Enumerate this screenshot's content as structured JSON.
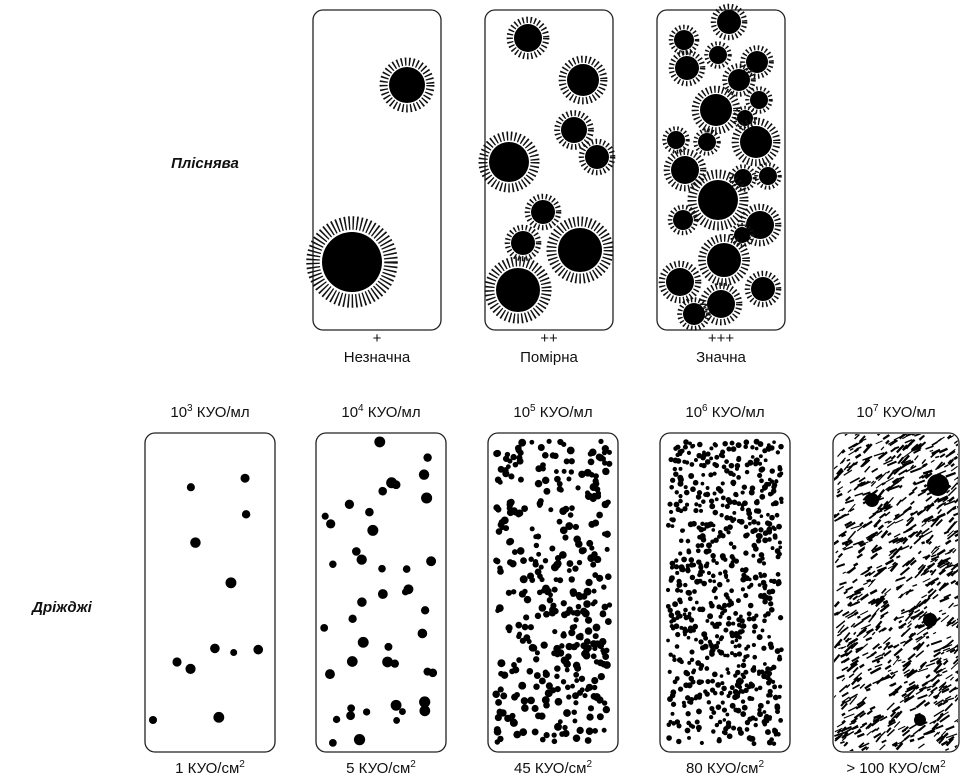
{
  "mold": {
    "label": "Пліснява",
    "panels": [
      {
        "symbol": "+",
        "caption": "Незначна"
      },
      {
        "symbol": "++",
        "caption": "Помірна"
      },
      {
        "symbol": "+++",
        "caption": "Значна"
      }
    ]
  },
  "yeast": {
    "label": "Дріжджі",
    "panels": [
      {
        "top": {
          "base": "10",
          "exp": "3",
          "unit": "КУО/мл"
        },
        "bottom": {
          "text": "1 КУО/см",
          "exp": "2"
        }
      },
      {
        "top": {
          "base": "10",
          "exp": "4",
          "unit": "КУО/мл"
        },
        "bottom": {
          "text": "5 КУО/см",
          "exp": "2"
        }
      },
      {
        "top": {
          "base": "10",
          "exp": "5",
          "unit": "КУО/мл"
        },
        "bottom": {
          "text": "45 КУО/см",
          "exp": "2"
        }
      },
      {
        "top": {
          "base": "10",
          "exp": "6",
          "unit": "КУО/мл"
        },
        "bottom": {
          "text": "80 КУО/см",
          "exp": "2"
        }
      },
      {
        "top": {
          "base": "10",
          "exp": "7",
          "unit": "КУО/мл"
        },
        "bottom": {
          "text": "> 100 КУО/см",
          "exp": "2"
        }
      }
    ]
  }
}
